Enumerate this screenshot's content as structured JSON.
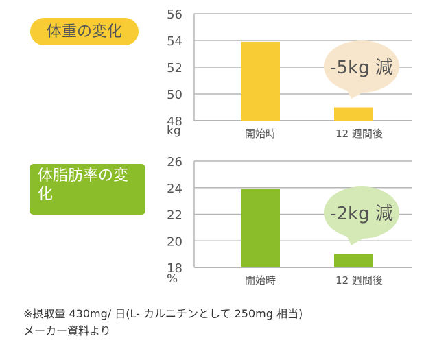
{
  "badges": {
    "weight": "体重の変化",
    "fat": "体脂肪率の変化"
  },
  "chart_data": [
    {
      "type": "bar",
      "title": "体重の変化",
      "categories": [
        "開始時",
        "12 週間後"
      ],
      "values": [
        53.9,
        49.0
      ],
      "ylabel": "kg",
      "ylim": [
        48,
        56
      ],
      "yticks": [
        48,
        50,
        52,
        54,
        56
      ],
      "grid": true,
      "color": "#f7cc34",
      "annotation": "-5kg 減",
      "annotation_color": "#f7e6cb"
    },
    {
      "type": "bar",
      "title": "体脂肪率の変化",
      "categories": [
        "開始時",
        "12 週間後"
      ],
      "values": [
        23.9,
        19.0
      ],
      "ylabel": "%",
      "ylim": [
        18,
        26
      ],
      "yticks": [
        18,
        20,
        22,
        24,
        26
      ],
      "grid": true,
      "color": "#8bbd2a",
      "annotation": "-2kg 減",
      "annotation_color": "#d5e9b6"
    }
  ],
  "footnote": {
    "line1": "※摂取量 430mg/ 日(L- カルニチンとして 250mg 相当)",
    "line2": "メーカー資料より"
  }
}
